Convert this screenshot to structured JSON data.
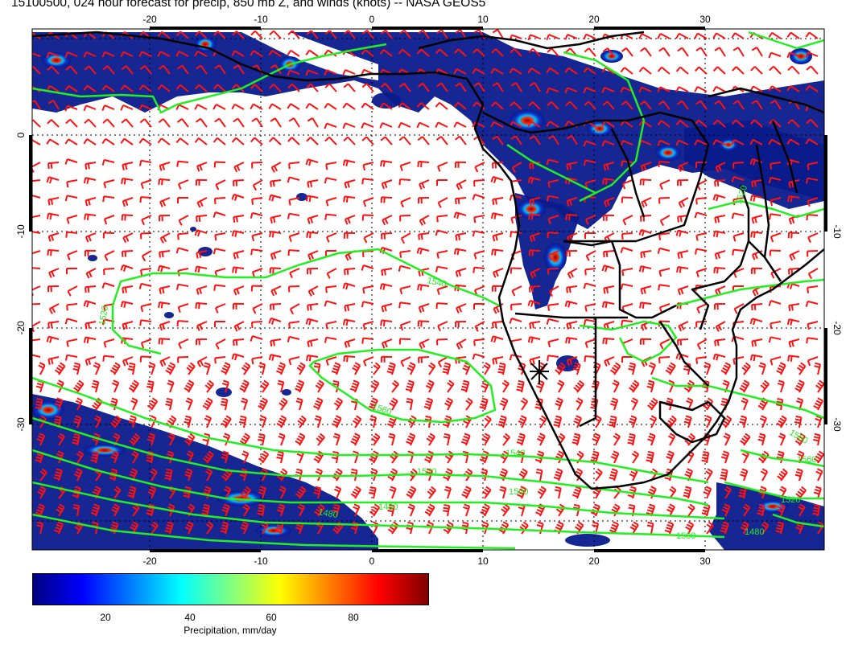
{
  "title": "15100500, 024 hour forecast for precip, 850 mb Z, and winds (knots) -- NASA GEOS5",
  "map": {
    "lon_ticks": [
      "-20",
      "-10",
      "0",
      "10",
      "20",
      "30"
    ],
    "lat_ticks": [
      "0",
      "-10",
      "-20",
      "-30"
    ],
    "contour_labels": [
      "1540",
      "1560",
      "1520",
      "1500",
      "1480",
      "1480",
      "1520",
      "1540",
      "1560",
      "1520",
      "1500",
      "1480",
      "1560",
      "1520"
    ],
    "colors": {
      "contour": "#22ee22",
      "wind_barb": "#ff1111",
      "coast": "#000000",
      "precip_low": "#0a1a8c",
      "precip_high": "#6b0000"
    },
    "marker": "star-cross"
  },
  "colorbar": {
    "ticks": [
      "20",
      "40",
      "60",
      "80"
    ],
    "label": "Precipitation, mm/day",
    "gradient": [
      "#00007f",
      "#0000ff",
      "#0080ff",
      "#00ffff",
      "#80ff80",
      "#ffff00",
      "#ff8000",
      "#ff0000",
      "#7f0000"
    ]
  }
}
